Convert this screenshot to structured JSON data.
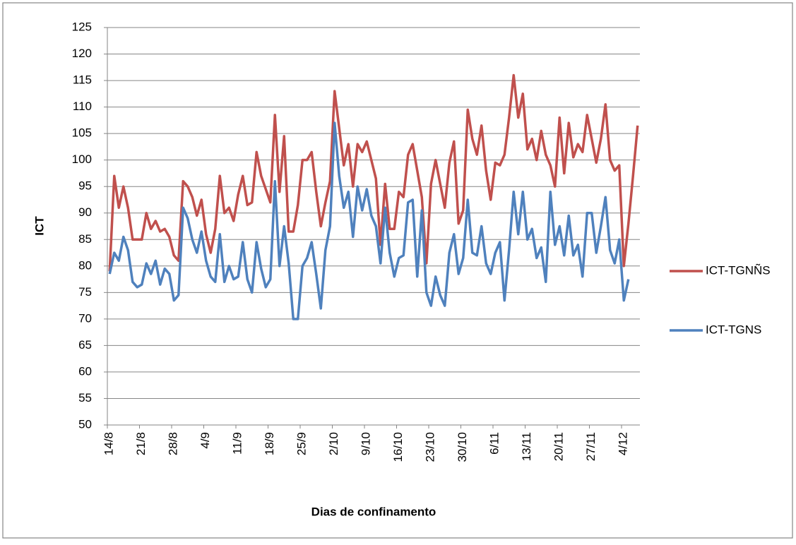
{
  "chart_data": {
    "type": "line",
    "x_label": "Dias de confinamento",
    "y_label": "ICT",
    "categories": [
      "14/8",
      null,
      null,
      null,
      null,
      null,
      null,
      "21/8",
      null,
      null,
      null,
      null,
      null,
      null,
      "28/8",
      null,
      null,
      null,
      null,
      null,
      null,
      "4/9",
      null,
      null,
      null,
      null,
      null,
      null,
      "11/9",
      null,
      null,
      null,
      null,
      null,
      null,
      "18/9",
      null,
      null,
      null,
      null,
      null,
      null,
      "25/9",
      null,
      null,
      null,
      null,
      null,
      null,
      "2/10",
      null,
      null,
      null,
      null,
      null,
      null,
      "9/10",
      null,
      null,
      null,
      null,
      null,
      null,
      "16/10",
      null,
      null,
      null,
      null,
      null,
      null,
      "23/10",
      null,
      null,
      null,
      null,
      null,
      null,
      "30/10",
      null,
      null,
      null,
      null,
      null,
      null,
      "6/11",
      null,
      null,
      null,
      null,
      null,
      null,
      "13/11",
      null,
      null,
      null,
      null,
      null,
      null,
      "20/11",
      null,
      null,
      null,
      null,
      null,
      null,
      "27/11",
      null,
      null,
      null,
      null,
      null,
      null,
      "4/12",
      null,
      null,
      null
    ],
    "series": [
      {
        "name": "ICT-TGNÑS",
        "color": "#c0504d",
        "values": [
          79,
          97,
          91,
          95,
          91,
          85,
          85,
          85,
          90,
          87,
          88.5,
          86.5,
          87,
          85.5,
          82,
          81,
          96,
          95,
          93,
          89.5,
          92.5,
          86,
          82.5,
          87,
          97,
          90,
          91,
          88.5,
          93.5,
          97,
          91.5,
          92,
          101.5,
          97,
          94.5,
          92,
          108.5,
          94,
          104.5,
          86.5,
          86.5,
          91.5,
          100,
          100,
          101.5,
          94,
          87.5,
          92,
          96,
          113,
          106,
          99,
          103,
          95,
          103,
          101.5,
          103.5,
          100,
          96.5,
          84,
          95.5,
          87,
          87,
          94,
          93,
          101,
          103,
          98,
          93,
          80.5,
          95.5,
          100,
          95.5,
          91,
          99.5,
          103.5,
          88,
          90.5,
          109.5,
          104,
          101,
          106.5,
          98,
          92.5,
          99.5,
          99,
          101,
          108,
          116,
          108,
          112.5,
          102,
          104,
          100,
          105.5,
          101,
          99,
          95,
          108,
          97.5,
          107,
          100.5,
          103,
          101.5,
          108.5,
          104,
          99.5,
          104,
          110.5,
          100,
          98,
          99,
          80,
          88,
          97,
          106.5
        ]
      },
      {
        "name": "ICT-TGNS",
        "color": "#4f81bd",
        "values": [
          78.5,
          82.5,
          81,
          85.5,
          83,
          77,
          76,
          76.5,
          80.5,
          78.5,
          81,
          76.5,
          79.5,
          78.5,
          73.5,
          74.5,
          91,
          89,
          85,
          82.5,
          86.5,
          81,
          78,
          77,
          86,
          77,
          80,
          77.5,
          78,
          84.5,
          77.5,
          75,
          84.5,
          79.5,
          76,
          77.5,
          96,
          80,
          87.5,
          80.5,
          70,
          70,
          80,
          81.5,
          84.5,
          78.5,
          72,
          83,
          87.5,
          107,
          97,
          91,
          94,
          85.5,
          95,
          90.5,
          94.5,
          89.5,
          87.5,
          80.5,
          91,
          82.5,
          78,
          81.5,
          82,
          92,
          92.5,
          78,
          90.5,
          75,
          72.5,
          78,
          74.5,
          72.5,
          82.5,
          86,
          78.5,
          81.5,
          92.5,
          82.5,
          82,
          87.5,
          80.5,
          78.5,
          82.5,
          84.5,
          73.5,
          83,
          94,
          86,
          94,
          85,
          87,
          81.5,
          83.5,
          77,
          94,
          84,
          87.5,
          82,
          89.5,
          82,
          84,
          78,
          90,
          90,
          82.5,
          87.5,
          93,
          83,
          80.5,
          85,
          73.5,
          77.5,
          null,
          null
        ]
      }
    ],
    "ylim": [
      50,
      125
    ],
    "yticks": [
      50,
      55,
      60,
      65,
      70,
      75,
      80,
      85,
      90,
      95,
      100,
      105,
      110,
      115,
      120,
      125
    ],
    "grid": true,
    "legend": "right"
  }
}
